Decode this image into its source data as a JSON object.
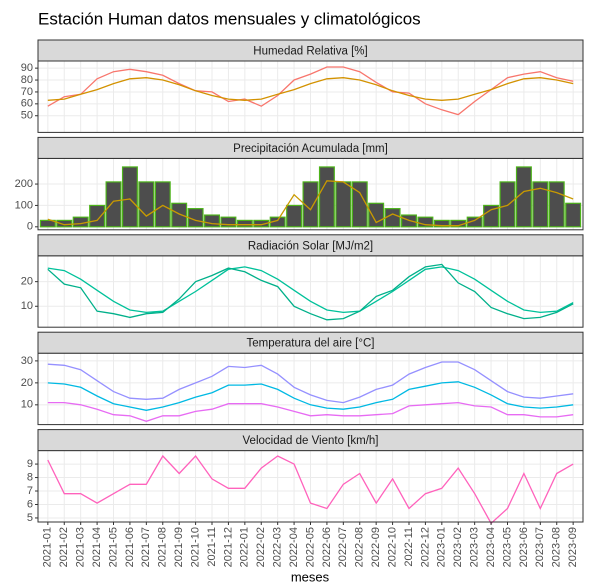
{
  "title": "Estación Human datos mensuales y climatológicos",
  "x_label": "meses",
  "categories": [
    "2021-01",
    "2021-02",
    "2021-03",
    "2021-04",
    "2021-05",
    "2021-06",
    "2021-07",
    "2021-08",
    "2021-09",
    "2021-10",
    "2021-11",
    "2021-12",
    "2022-01",
    "2022-02",
    "2022-03",
    "2022-04",
    "2022-05",
    "2022-06",
    "2022-07",
    "2022-08",
    "2022-09",
    "2022-10",
    "2022-11",
    "2022-12",
    "2023-01",
    "2023-02",
    "2023-03",
    "2023-04",
    "2023-05",
    "2023-06",
    "2023-07",
    "2023-08",
    "2023-09"
  ],
  "chart_data": [
    {
      "type": "line",
      "title": "Humedad Relativa [%]",
      "ylim": [
        36,
        96
      ],
      "yticks": [
        50,
        60,
        70,
        80,
        90
      ],
      "grid": true,
      "series": [
        {
          "color": "#F8766D",
          "values": [
            58,
            66,
            68,
            81,
            87,
            89,
            87,
            84,
            77,
            71,
            70,
            62,
            64,
            58,
            67,
            80,
            85,
            91,
            91,
            87,
            78,
            70,
            69,
            60,
            55,
            51,
            62,
            72,
            82,
            85,
            87,
            82,
            79
          ]
        },
        {
          "color": "#D39200",
          "values": [
            63,
            64,
            68,
            72,
            77,
            81,
            82,
            80,
            76,
            71,
            67,
            64,
            63,
            64,
            68,
            72,
            77,
            81,
            82,
            80,
            76,
            71,
            67,
            64,
            63,
            64,
            68,
            72,
            77,
            81,
            82,
            80,
            77
          ]
        }
      ]
    },
    {
      "type": "bar",
      "title": "Precipitación Acumulada [mm]",
      "ylim": [
        -14,
        320
      ],
      "yticks": [
        0,
        100,
        200
      ],
      "grid": true,
      "series": [
        {
          "color": "#4D4D4D",
          "edge_color": "#4DB31A",
          "values": [
            30,
            30,
            45,
            100,
            210,
            280,
            210,
            210,
            110,
            85,
            55,
            45,
            30,
            30,
            45,
            100,
            210,
            280,
            210,
            210,
            110,
            85,
            55,
            45,
            30,
            30,
            45,
            100,
            210,
            280,
            210,
            210,
            110
          ]
        },
        {
          "type": "line",
          "color": "#C99A00",
          "values": [
            35,
            10,
            15,
            30,
            120,
            130,
            50,
            100,
            60,
            30,
            15,
            10,
            10,
            10,
            30,
            150,
            80,
            215,
            210,
            160,
            20,
            60,
            30,
            10,
            5,
            5,
            30,
            80,
            100,
            165,
            180,
            160,
            130
          ]
        }
      ]
    },
    {
      "type": "line",
      "title": "Radiación Solar [MJ/m2]",
      "ylim": [
        1.5,
        30.5
      ],
      "yticks": [
        10,
        20
      ],
      "grid": true,
      "series": [
        {
          "color": "#00C19A",
          "values": [
            25.5,
            24.5,
            21,
            16.5,
            12,
            8.5,
            7.5,
            8,
            12,
            16,
            20.5,
            25,
            26,
            24.5,
            21,
            16.5,
            12,
            8.5,
            7.5,
            8,
            12,
            16,
            20.5,
            25,
            26,
            24.5,
            21,
            16.5,
            12,
            8.5,
            7.5,
            8,
            11.5
          ]
        },
        {
          "color": "#00B08A",
          "values": [
            25,
            19,
            17.5,
            8,
            7,
            5.5,
            7,
            7.5,
            13,
            20,
            22.5,
            25.5,
            24,
            20.5,
            18,
            10,
            7,
            4.5,
            5,
            8,
            14,
            16.5,
            22,
            26,
            27,
            19.5,
            16,
            9.5,
            7,
            5,
            5.5,
            7.5,
            11
          ]
        }
      ]
    },
    {
      "type": "line",
      "title": "Temperatura del aire [°C]",
      "ylim": [
        1,
        33.5
      ],
      "yticks": [
        10,
        20,
        30
      ],
      "grid": true,
      "series": [
        {
          "color": "#9590FF",
          "values": [
            28.5,
            28,
            26,
            21,
            16,
            13,
            12.5,
            13,
            17,
            20,
            23,
            27.5,
            27,
            28,
            24,
            18,
            14.5,
            12,
            11,
            13.5,
            17,
            19,
            24,
            27,
            29.5,
            29.5,
            26,
            21,
            16,
            13.5,
            13,
            14,
            15
          ]
        },
        {
          "color": "#00B9E3",
          "values": [
            20,
            19.5,
            18,
            14,
            10.5,
            9,
            7.5,
            9,
            11,
            13.5,
            15.5,
            19,
            19,
            19.5,
            17,
            13,
            10,
            8.5,
            8,
            9,
            11,
            12.5,
            17,
            18.5,
            20,
            20.5,
            18,
            14.5,
            10.5,
            9,
            8.5,
            9,
            10
          ]
        },
        {
          "color": "#E76BF3",
          "values": [
            11,
            11,
            10,
            8,
            5.5,
            5,
            2.5,
            5,
            5,
            7,
            8,
            10.5,
            10.5,
            10.5,
            9,
            7,
            5,
            5.5,
            5,
            5,
            5.5,
            6,
            9.5,
            10,
            10.5,
            11,
            9.5,
            9,
            5.5,
            5.5,
            4.5,
            4.5,
            5.5
          ]
        }
      ]
    },
    {
      "type": "line",
      "title": "Velocidad de Viento [km/h]",
      "ylim": [
        4.7,
        10
      ],
      "yticks": [
        5,
        6,
        7,
        8,
        9
      ],
      "grid": true,
      "series": [
        {
          "color": "#FF62BC",
          "values": [
            9.3,
            6.8,
            6.8,
            6.1,
            6.8,
            7.5,
            7.5,
            9.6,
            8.3,
            9.6,
            7.9,
            7.2,
            7.2,
            8.7,
            9.6,
            9.0,
            6.1,
            5.7,
            7.5,
            8.3,
            6.1,
            7.9,
            5.7,
            6.8,
            7.2,
            8.7,
            6.8,
            4.6,
            5.7,
            8.3,
            5.7,
            8.3,
            9.0
          ]
        }
      ]
    }
  ]
}
